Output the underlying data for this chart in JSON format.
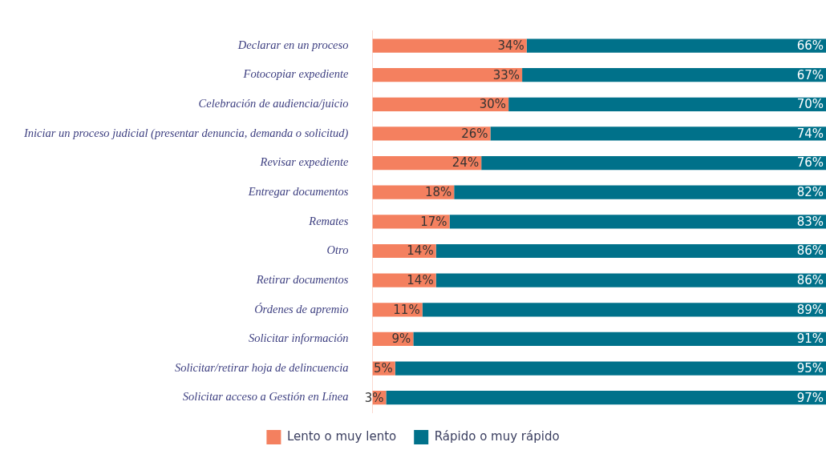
{
  "chart_data": {
    "type": "bar",
    "orientation": "horizontal",
    "stacked": true,
    "categories": [
      "Declarar en un proceso",
      "Fotocopiar expediente",
      "Celebración de audiencia/juicio",
      "Iniciar un proceso judicial (presentar denuncia, demanda o solicitud)",
      "Revisar expediente",
      "Entregar documentos",
      "Remates",
      "Otro",
      "Retirar documentos",
      "Órdenes de apremio",
      "Solicitar información",
      "Solicitar/retirar hoja de delincuencia",
      "Solicitar acceso a Gestión en Línea"
    ],
    "series": [
      {
        "name": "Lento o muy lento",
        "color": "#f4805f",
        "values": [
          34,
          33,
          30,
          26,
          24,
          18,
          17,
          14,
          14,
          11,
          9,
          5,
          3
        ],
        "value_labels": [
          "34%",
          "33%",
          "30%",
          "26%",
          "24%",
          "18%",
          "17%",
          "14%",
          "14%",
          "11%",
          "9%",
          "5%",
          "3%"
        ]
      },
      {
        "name": "Rápido o muy rápido",
        "color": "#00718a",
        "values": [
          66,
          67,
          70,
          74,
          76,
          82,
          83,
          86,
          86,
          89,
          91,
          95,
          97
        ],
        "value_labels": [
          "66%",
          "67%",
          "70%",
          "74%",
          "76%",
          "82%",
          "83%",
          "86%",
          "86%",
          "89%",
          "91%",
          "95%",
          "97%"
        ]
      }
    ],
    "tick_labels": "y",
    "grid": false,
    "legend": "bottom"
  }
}
